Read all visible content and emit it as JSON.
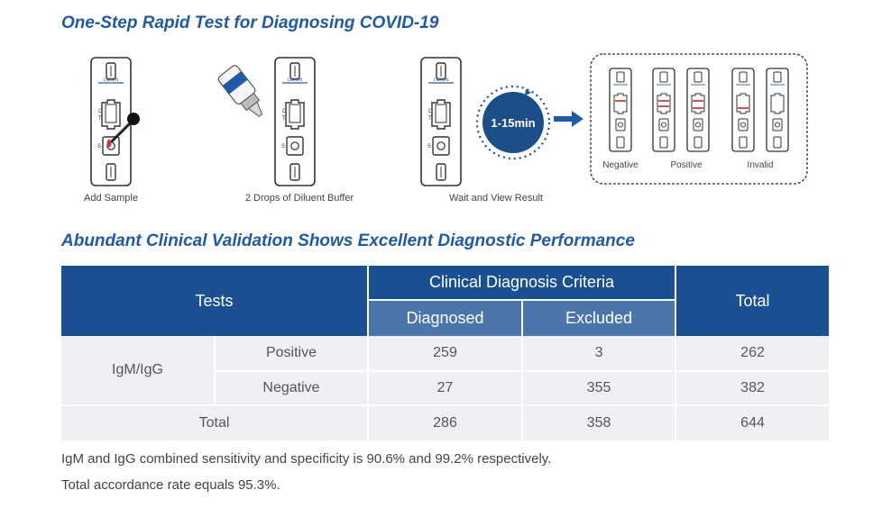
{
  "procedure": {
    "title": "One-Step Rapid Test for Diagnosing COVID-19",
    "steps": [
      {
        "caption": "Add Sample"
      },
      {
        "caption": "2 Drops of Diluent Buffer"
      },
      {
        "caption": "Wait and View Result"
      }
    ],
    "timer_label": "1-15min",
    "cassette_brand": "LIBION",
    "cassette_markings": {
      "control": "C",
      "test": "T",
      "sample": "S"
    },
    "result_labels": [
      "Negative",
      "Positive",
      "Invalid"
    ],
    "colors": {
      "heading": "#1f5aa6",
      "timer": "#1c4f8a",
      "arrow": "#1f5aa6",
      "sample_drop": "#d32f2f",
      "result_line": "#c62828"
    }
  },
  "validation": {
    "title": "Abundant Clinical Validation Shows Excellent Diagnostic Performance",
    "table": {
      "header_tests": "Tests",
      "header_criteria": "Clinical Diagnosis Criteria",
      "header_diagnosed": "Diagnosed",
      "header_excluded": "Excluded",
      "header_total": "Total",
      "row_group_label": "IgM/IgG",
      "rows": [
        {
          "label": "Positive",
          "diagnosed": "259",
          "excluded": "3",
          "total": "262"
        },
        {
          "label": "Negative",
          "diagnosed": "27",
          "excluded": "355",
          "total": "382"
        }
      ],
      "total_row": {
        "label": "Total",
        "diagnosed": "286",
        "excluded": "358",
        "total": "644"
      }
    },
    "notes": [
      "IgM and IgG combined sensitivity and specificity is 90.6% and 99.2% respectively.",
      "Total accordance rate equals 95.3%."
    ],
    "colors": {
      "header": "#1a4f91",
      "subheader": "#4a76ac",
      "row_background": "#eef0f4"
    }
  }
}
